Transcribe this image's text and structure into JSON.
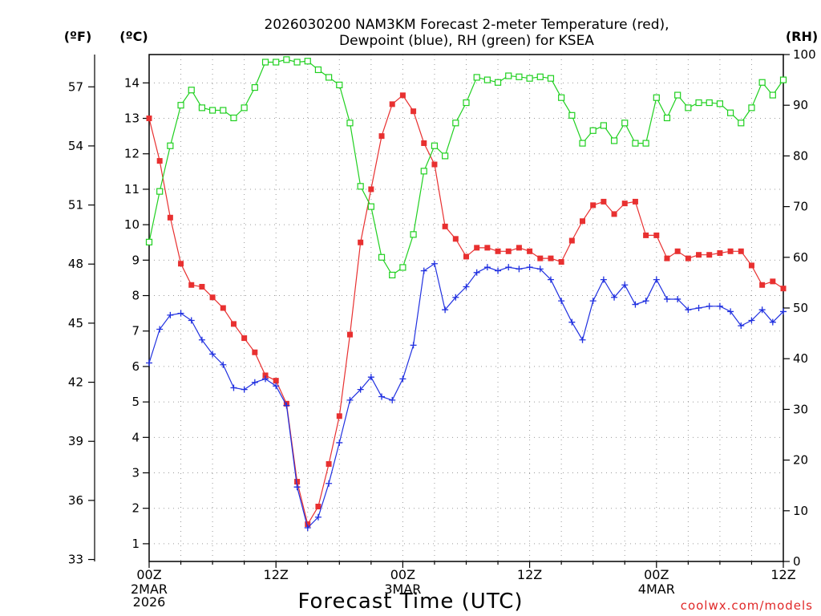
{
  "title": {
    "line1": "2026030200 NAM3KM Forecast 2-meter Temperature (red),",
    "line2": "Dewpoint (blue), RH (green) for KSEA"
  },
  "credit": "coolwx.com/models",
  "chart_data": {
    "type": "line",
    "title": "2026030200 NAM3KM Forecast 2-meter Temperature (red), Dewpoint (blue), RH (green) for KSEA",
    "xlabel": "Forecast Time (UTC)",
    "x_unit": "forecast hour",
    "xlim": [
      0,
      60
    ],
    "x_ticks": [
      {
        "x": 0,
        "label": "00Z",
        "sub1": "2MAR",
        "sub2": "2026"
      },
      {
        "x": 12,
        "label": "12Z",
        "sub1": "",
        "sub2": ""
      },
      {
        "x": 24,
        "label": "00Z",
        "sub1": "3MAR",
        "sub2": ""
      },
      {
        "x": 36,
        "label": "12Z",
        "sub1": "",
        "sub2": ""
      },
      {
        "x": 48,
        "label": "00Z",
        "sub1": "4MAR",
        "sub2": ""
      },
      {
        "x": 60,
        "label": "12Z",
        "sub1": "",
        "sub2": ""
      }
    ],
    "axes": {
      "left_f": {
        "label": "(ºF)",
        "ticks": [
          33,
          36,
          39,
          42,
          45,
          48,
          51,
          54,
          57
        ]
      },
      "left_c": {
        "label": "(ºC)",
        "range": [
          0.5,
          14.8
        ],
        "ticks": [
          1,
          2,
          3,
          4,
          5,
          6,
          7,
          8,
          9,
          10,
          11,
          12,
          13,
          14
        ]
      },
      "right_rh": {
        "label": "(RH)",
        "range": [
          0,
          100
        ],
        "ticks": [
          0,
          10,
          20,
          30,
          40,
          50,
          60,
          70,
          80,
          90,
          100
        ]
      }
    },
    "grid": true,
    "series": [
      {
        "name": "2-meter Temperature",
        "axis": "left_c",
        "color": "#e83030",
        "marker": "filled-square",
        "x": [
          0,
          1,
          2,
          3,
          4,
          5,
          6,
          7,
          8,
          9,
          10,
          11,
          12,
          13,
          14,
          15,
          16,
          17,
          18,
          19,
          20,
          21,
          22,
          23,
          24,
          25,
          26,
          27,
          28,
          29,
          30,
          31,
          32,
          33,
          34,
          35,
          36,
          37,
          38,
          39,
          40,
          41,
          42,
          43,
          44,
          45,
          46,
          47,
          48,
          49,
          50,
          51,
          52,
          53,
          54,
          55,
          56,
          57,
          58,
          59,
          60
        ],
        "values": [
          13.0,
          11.8,
          10.2,
          8.9,
          8.3,
          8.25,
          7.95,
          7.65,
          7.2,
          6.8,
          6.4,
          5.75,
          5.6,
          4.95,
          2.75,
          1.55,
          2.05,
          3.25,
          4.6,
          6.9,
          9.5,
          11.0,
          12.5,
          13.4,
          13.65,
          13.2,
          12.3,
          11.7,
          9.95,
          9.6,
          9.1,
          9.35,
          9.35,
          9.25,
          9.25,
          9.35,
          9.25,
          9.05,
          9.05,
          8.95,
          9.55,
          10.1,
          10.55,
          10.65,
          10.3,
          10.6,
          10.65,
          9.7,
          9.7,
          9.05,
          9.25,
          9.05,
          9.15,
          9.15,
          9.2,
          9.25,
          9.25,
          8.85,
          8.3,
          8.4,
          8.2
        ]
      },
      {
        "name": "Dewpoint",
        "axis": "left_c",
        "color": "#2030e0",
        "marker": "plus",
        "x": [
          0,
          1,
          2,
          3,
          4,
          5,
          6,
          7,
          8,
          9,
          10,
          11,
          12,
          13,
          14,
          15,
          16,
          17,
          18,
          19,
          20,
          21,
          22,
          23,
          24,
          25,
          26,
          27,
          28,
          29,
          30,
          31,
          32,
          33,
          34,
          35,
          36,
          37,
          38,
          39,
          40,
          41,
          42,
          43,
          44,
          45,
          46,
          47,
          48,
          49,
          50,
          51,
          52,
          53,
          54,
          55,
          56,
          57,
          58,
          59,
          60
        ],
        "values": [
          6.1,
          7.05,
          7.45,
          7.5,
          7.3,
          6.75,
          6.35,
          6.05,
          5.4,
          5.35,
          5.55,
          5.65,
          5.45,
          4.9,
          2.6,
          1.45,
          1.75,
          2.7,
          3.85,
          5.05,
          5.35,
          5.7,
          5.15,
          5.05,
          5.65,
          6.6,
          8.7,
          8.9,
          7.6,
          7.95,
          8.25,
          8.65,
          8.8,
          8.7,
          8.8,
          8.75,
          8.8,
          8.75,
          8.45,
          7.85,
          7.25,
          6.75,
          7.85,
          8.45,
          7.95,
          8.3,
          7.75,
          7.85,
          8.45,
          7.9,
          7.9,
          7.6,
          7.65,
          7.7,
          7.7,
          7.55,
          7.15,
          7.3,
          7.6,
          7.25,
          7.55
        ]
      },
      {
        "name": "RH",
        "axis": "right_rh",
        "color": "#20d020",
        "marker": "open-square",
        "x": [
          0,
          1,
          2,
          3,
          4,
          5,
          6,
          7,
          8,
          9,
          10,
          11,
          12,
          13,
          14,
          15,
          16,
          17,
          18,
          19,
          20,
          21,
          22,
          23,
          24,
          25,
          26,
          27,
          28,
          29,
          30,
          31,
          32,
          33,
          34,
          35,
          36,
          37,
          38,
          39,
          40,
          41,
          42,
          43,
          44,
          45,
          46,
          47,
          48,
          49,
          50,
          51,
          52,
          53,
          54,
          55,
          56,
          57,
          58,
          59,
          60
        ],
        "values": [
          63,
          73,
          82,
          90,
          93,
          89.5,
          89,
          89,
          87.5,
          89.5,
          93.5,
          98.5,
          98.5,
          99,
          98.5,
          98.7,
          97,
          95.5,
          94,
          86.5,
          74,
          70,
          60,
          56.5,
          58,
          64.5,
          77,
          82,
          80,
          86.5,
          90.5,
          95.5,
          95,
          94.5,
          95.8,
          95.6,
          95.3,
          95.6,
          95.3,
          91.5,
          88,
          82.5,
          85,
          86,
          83,
          86.5,
          82.5,
          82.5,
          91.5,
          87.5,
          92,
          89.5,
          90.5,
          90.5,
          90.3,
          88.5,
          86.5,
          89.5,
          94.5,
          92,
          95
        ]
      }
    ]
  }
}
